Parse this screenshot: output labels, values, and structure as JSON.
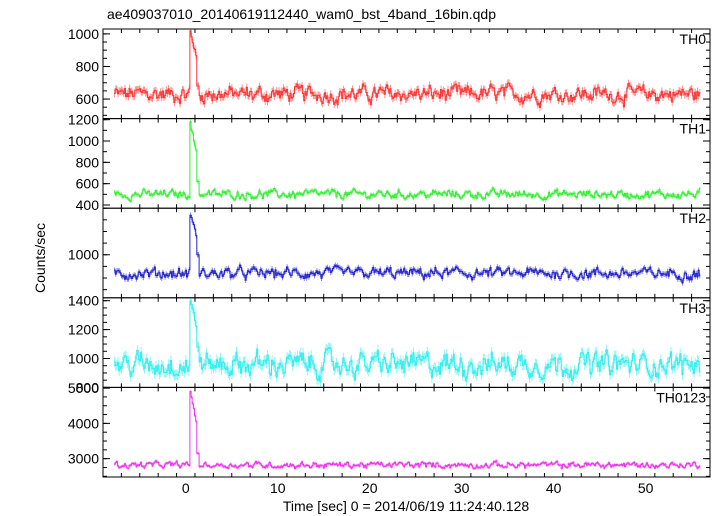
{
  "title": "ae409037010_20140619112440_wam0_bst_4band_16bin.qdp",
  "ylabel": "Counts/sec",
  "xlabel": "Time [sec] 0 = 2014/06/19 11:24:40.128",
  "chart_data": {
    "type": "line",
    "title": "ae409037010_20140619112440_wam0_bst_4band_16bin.qdp",
    "xlabel": "Time [sec] 0 = 2014/06/19 11:24:40.128",
    "ylabel": "Counts/sec",
    "xlim": [
      -9,
      57
    ],
    "x_ticks": [
      0,
      10,
      20,
      30,
      40,
      50
    ],
    "x_tick_labels": [
      "0",
      "10",
      "20",
      "30",
      "40",
      "50"
    ],
    "x_minor_step": 2,
    "time_range": [
      -7.8,
      55.9
    ],
    "error_bars": true,
    "bin_note": "16bin",
    "legend": "none",
    "panels": [
      {
        "name": "TH0",
        "color": "#ff3333",
        "ylim": [
          480,
          1030
        ],
        "y_ticks": [
          600,
          800,
          1000
        ],
        "y_tick_labels": [
          "600",
          "800",
          "1000"
        ],
        "baseline": 630,
        "noise": 40,
        "peak": 1030,
        "min": 520,
        "burst_start": 0.4,
        "burst_end": 1.2,
        "tail": 680
      },
      {
        "name": "TH1",
        "color": "#33ee33",
        "ylim": [
          370,
          1210
        ],
        "y_ticks": [
          400,
          600,
          800,
          1000,
          1200
        ],
        "y_tick_labels": [
          "400",
          "600",
          "800",
          "1000",
          "1200"
        ],
        "baseline": 500,
        "noise": 32,
        "peak": 1190,
        "min": 400,
        "burst_start": 0.4,
        "burst_end": 1.2,
        "tail": 620
      },
      {
        "name": "TH2",
        "color": "#2222cc",
        "ylim": [
          630,
          1400
        ],
        "y_ticks": [
          1000
        ],
        "y_tick_labels": [
          "1000"
        ],
        "baseline": 840,
        "noise": 38,
        "peak": 1360,
        "min": 700,
        "burst_start": 0.4,
        "burst_end": 1.2,
        "tail": 1000
      },
      {
        "name": "TH3",
        "color": "#33eeee",
        "ylim": [
          800,
          1420
        ],
        "y_ticks": [
          800,
          1000,
          1200,
          1400
        ],
        "y_tick_labels": [
          "800",
          "1000",
          "1200",
          "1400"
        ],
        "baseline": 960,
        "noise": 65,
        "peak": 1400,
        "min": 820,
        "burst_start": 0.4,
        "burst_end": 1.2,
        "tail": 1080
      },
      {
        "name": "TH0123",
        "color": "#ee33ee",
        "ylim": [
          2480,
          5020
        ],
        "y_ticks": [
          3000,
          4000,
          5000
        ],
        "y_tick_labels": [
          "3000",
          "4000",
          "5000"
        ],
        "baseline": 2820,
        "noise": 70,
        "peak": 4980,
        "min": 2650,
        "burst_start": 0.4,
        "burst_end": 1.2,
        "tail": 3150
      }
    ]
  }
}
